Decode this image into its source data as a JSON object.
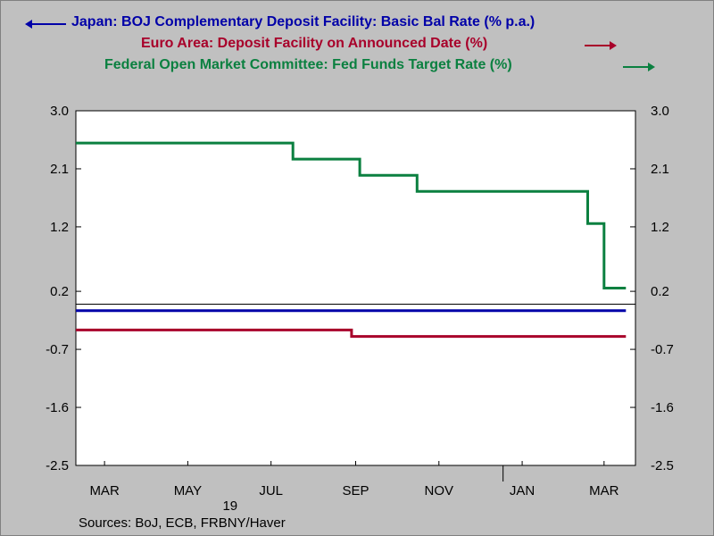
{
  "chart_data": {
    "type": "line",
    "legend_placement": "top",
    "series": [
      {
        "name": "Japan: BOJ Complementary Deposit Facility: Basic Bal Rate (% p.a.)",
        "color": "#0000a8",
        "axis": "left",
        "x": [
          "2019-02-22",
          "2020-03-31"
        ],
        "values": [
          -0.1,
          -0.1
        ]
      },
      {
        "name": "Euro Area: Deposit Facility on Announced Date (%)",
        "color": "#a8002a",
        "axis": "right",
        "x": [
          "2019-02-22",
          "2019-09-12",
          "2019-09-12",
          "2020-03-31"
        ],
        "values": [
          -0.4,
          -0.4,
          -0.5,
          -0.5
        ]
      },
      {
        "name": "Federal Open Market Committee: Fed Funds Target Rate (%)",
        "color": "#0b8040",
        "axis": "right",
        "x": [
          "2019-02-22",
          "2019-07-31",
          "2019-07-31",
          "2019-09-18",
          "2019-09-18",
          "2019-10-30",
          "2019-10-30",
          "2020-03-03",
          "2020-03-03",
          "2020-03-15",
          "2020-03-15",
          "2020-03-31"
        ],
        "values": [
          2.5,
          2.5,
          2.25,
          2.25,
          2.0,
          2.0,
          1.75,
          1.75,
          1.25,
          1.25,
          0.25,
          0.25
        ]
      }
    ],
    "x_tick_labels": [
      "MAR",
      "MAY",
      "JUL",
      "SEP",
      "NOV",
      "JAN",
      "MAR"
    ],
    "x_tick_dates": [
      "2019-03-15",
      "2019-05-15",
      "2019-07-15",
      "2019-09-15",
      "2019-11-15",
      "2020-01-15",
      "2020-03-15"
    ],
    "x_year_label": "19",
    "x_year_divider": "2020-01-01",
    "y_left_ticks": [
      3.0,
      2.1,
      1.2,
      0.2,
      -0.7,
      -1.6,
      -2.5
    ],
    "y_right_ticks": [
      3.0,
      2.1,
      1.2,
      0.2,
      -0.7,
      -1.6,
      -2.5
    ],
    "ylim": [
      -2.5,
      3.0
    ],
    "xlim": [
      "2019-02-22",
      "2020-04-07"
    ],
    "zero_line": 0,
    "grid": false
  },
  "legend": {
    "line0": "Japan: BOJ Complementary Deposit Facility: Basic Bal Rate (% p.a.)",
    "line1": "Euro Area: Deposit Facility on Announced Date (%)",
    "line2": "Federal Open Market Committee: Fed Funds Target Rate (%)"
  },
  "source": "Sources:  BoJ, ECB, FRBNY/Haver",
  "colors": {
    "background": "#c0c0c0",
    "plot": "#ffffff"
  }
}
